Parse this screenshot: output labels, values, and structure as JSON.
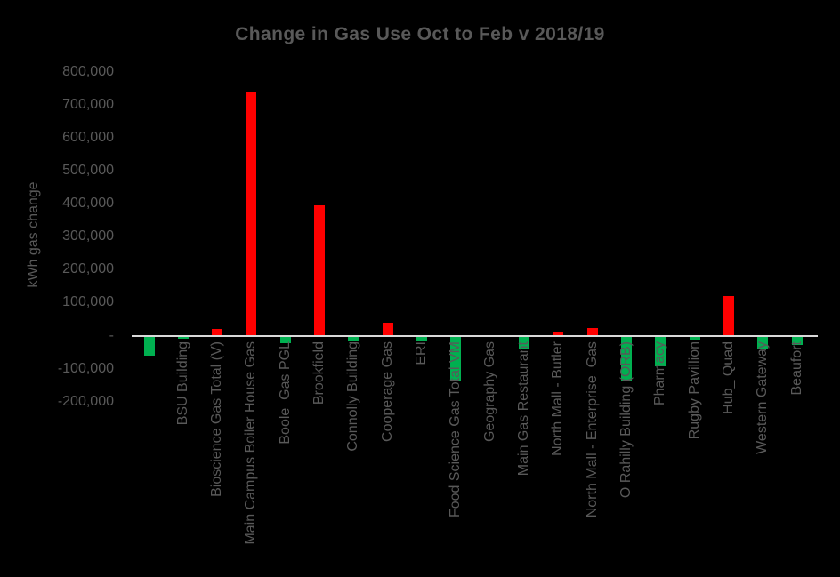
{
  "chart_data": {
    "type": "bar",
    "title": "Change in Gas Use Oct to Feb v 2018/19",
    "xlabel": "",
    "ylabel": "kWh gas change",
    "ylim": [
      -200000,
      800000
    ],
    "grid": false,
    "legend": false,
    "background_color": "#000000",
    "text_color": "#595959",
    "positive_bar_color": "#ff0000",
    "negative_bar_color": "#00b050",
    "axis_line_color": "#d9d9d9",
    "ytick_values": [
      800000,
      700000,
      600000,
      500000,
      400000,
      300000,
      200000,
      100000,
      0,
      -100000,
      -200000
    ],
    "ytick_labels": [
      "800,000",
      "700,000",
      "600,000",
      "500,000",
      "400,000",
      "300,000",
      "200,000",
      "100,000",
      "-",
      "-100,000",
      "-200,000"
    ],
    "categories": [
      "",
      "BSU Building",
      "Bioscience Gas Total (V)",
      "Main Campus Boiler House Gas",
      "Boole  Gas PGL",
      "Brookfield",
      "Connolly Building",
      "Cooperage Gas",
      "ERI",
      "Food Science Gas Total VM",
      "Geography Gas",
      "Main Gas Restaurant",
      "North Mall - Butler",
      "North Mall - Enterprise  Gas",
      "O Rahilly Building (ORB)",
      "Pharmacy",
      "Rugby Pavillion",
      "Hub_ Quad",
      "Western Gateway",
      "Beaufort"
    ],
    "values": [
      -60000,
      -10000,
      20000,
      740000,
      -23000,
      395000,
      -16000,
      38000,
      -16000,
      -137000,
      0,
      -38000,
      13000,
      22000,
      -137000,
      -92000,
      -13000,
      120000,
      -43000,
      -28000
    ]
  }
}
